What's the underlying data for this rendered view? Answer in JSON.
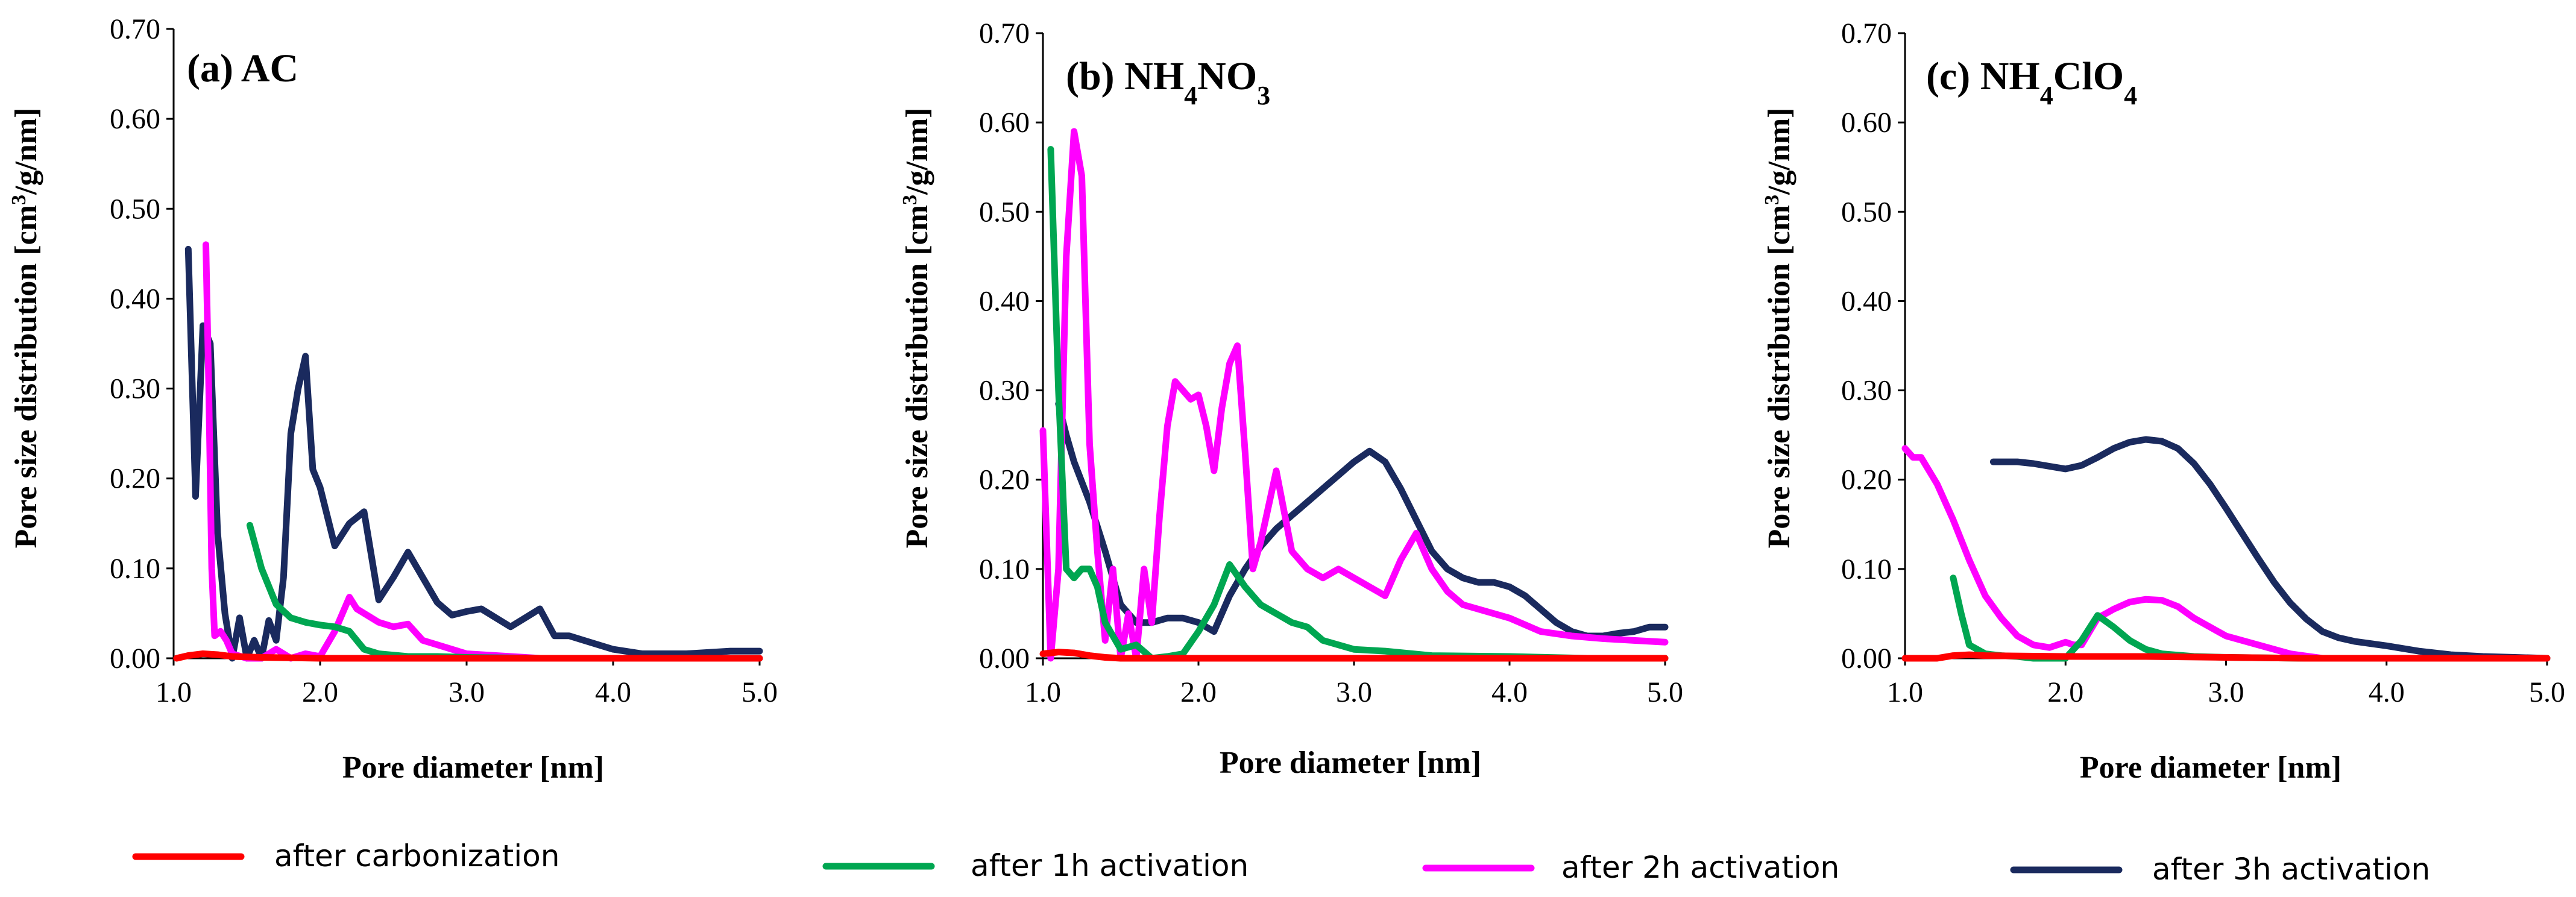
{
  "legend": [
    {
      "name": "after carbonization",
      "color": "#ff0000"
    },
    {
      "name": "after 1h activation",
      "color": "#00a651"
    },
    {
      "name": "after 2h activation",
      "color": "#ff00ff"
    },
    {
      "name": "after 3h activation",
      "color": "#1a2a5e"
    }
  ],
  "chart_data": [
    {
      "type": "line",
      "panel_label": "(a) AC",
      "xlabel": "Pore diameter [nm]",
      "ylabel": "Pore size distribution [cm³/g/nm]",
      "xlim": [
        1.0,
        5.0
      ],
      "ylim": [
        0.0,
        0.7
      ],
      "xticks": [
        "1.0",
        "2.0",
        "3.0",
        "4.0",
        "5.0"
      ],
      "yticks": [
        "0.00",
        "0.10",
        "0.20",
        "0.30",
        "0.40",
        "0.50",
        "0.60",
        "0.70"
      ],
      "series": [
        {
          "name": "after carbonization",
          "color": "#ff0000",
          "x": [
            1.02,
            1.1,
            1.2,
            1.3,
            1.4,
            1.6,
            2.0,
            2.5,
            3.0,
            4.0,
            5.0
          ],
          "y": [
            0.0,
            0.003,
            0.005,
            0.004,
            0.002,
            0.001,
            0.0,
            0.0,
            0.0,
            0.0,
            0.0
          ]
        },
        {
          "name": "after 1h activation",
          "color": "#00a651",
          "x": [
            1.52,
            1.6,
            1.7,
            1.8,
            1.9,
            2.0,
            2.1,
            2.2,
            2.3,
            2.4,
            2.6,
            2.8,
            3.0,
            3.5,
            4.0,
            4.5,
            5.0
          ],
          "y": [
            0.148,
            0.1,
            0.06,
            0.045,
            0.04,
            0.037,
            0.035,
            0.03,
            0.01,
            0.005,
            0.002,
            0.002,
            0.001,
            0.0,
            0.0,
            0.0,
            0.0
          ]
        },
        {
          "name": "after 2h activation",
          "color": "#ff00ff",
          "x": [
            1.22,
            1.24,
            1.26,
            1.28,
            1.32,
            1.36,
            1.4,
            1.5,
            1.6,
            1.7,
            1.8,
            1.9,
            2.0,
            2.1,
            2.2,
            2.25,
            2.3,
            2.4,
            2.5,
            2.6,
            2.7,
            2.8,
            3.0,
            3.5,
            4.0,
            5.0
          ],
          "y": [
            0.46,
            0.3,
            0.1,
            0.025,
            0.03,
            0.02,
            0.005,
            0.0,
            0.0,
            0.01,
            0.0,
            0.005,
            0.002,
            0.03,
            0.068,
            0.055,
            0.05,
            0.04,
            0.035,
            0.038,
            0.02,
            0.015,
            0.005,
            0.0,
            0.0,
            0.0
          ]
        },
        {
          "name": "after 3h activation",
          "color": "#1a2a5e",
          "x": [
            1.1,
            1.15,
            1.2,
            1.25,
            1.3,
            1.35,
            1.4,
            1.45,
            1.5,
            1.55,
            1.6,
            1.65,
            1.7,
            1.75,
            1.8,
            1.85,
            1.9,
            1.95,
            2.0,
            2.1,
            2.2,
            2.3,
            2.4,
            2.5,
            2.6,
            2.7,
            2.8,
            2.9,
            3.0,
            3.1,
            3.2,
            3.3,
            3.4,
            3.5,
            3.6,
            3.7,
            3.8,
            4.0,
            4.2,
            4.5,
            4.8,
            5.0
          ],
          "y": [
            0.455,
            0.18,
            0.37,
            0.35,
            0.14,
            0.05,
            0.0,
            0.045,
            0.0,
            0.02,
            0.0,
            0.042,
            0.02,
            0.09,
            0.25,
            0.3,
            0.336,
            0.21,
            0.19,
            0.125,
            0.15,
            0.163,
            0.065,
            0.09,
            0.118,
            0.09,
            0.062,
            0.048,
            0.052,
            0.055,
            0.045,
            0.035,
            0.045,
            0.055,
            0.025,
            0.025,
            0.02,
            0.01,
            0.005,
            0.005,
            0.008,
            0.008
          ]
        }
      ]
    },
    {
      "type": "line",
      "panel_label": "(b) NH4NO3",
      "xlabel": "Pore diameter [nm]",
      "ylabel": "Pore size distribution [cm³/g/nm]",
      "xlim": [
        1.0,
        5.0
      ],
      "ylim": [
        0.0,
        0.7
      ],
      "xticks": [
        "1.0",
        "2.0",
        "3.0",
        "4.0",
        "5.0"
      ],
      "yticks": [
        "0.00",
        "0.10",
        "0.20",
        "0.30",
        "0.40",
        "0.50",
        "0.60",
        "0.70"
      ],
      "series": [
        {
          "name": "after carbonization",
          "color": "#ff0000",
          "x": [
            1.0,
            1.1,
            1.2,
            1.3,
            1.4,
            1.5,
            2.0,
            3.0,
            4.0,
            5.0
          ],
          "y": [
            0.005,
            0.007,
            0.006,
            0.003,
            0.001,
            0.0,
            0.0,
            0.0,
            0.0,
            0.0
          ]
        },
        {
          "name": "after 1h activation",
          "color": "#00a651",
          "x": [
            1.05,
            1.1,
            1.15,
            1.2,
            1.25,
            1.3,
            1.35,
            1.4,
            1.5,
            1.6,
            1.7,
            1.8,
            1.9,
            2.0,
            2.1,
            2.2,
            2.3,
            2.4,
            2.5,
            2.6,
            2.7,
            2.8,
            3.0,
            3.2,
            3.5,
            4.0,
            4.5,
            5.0
          ],
          "y": [
            0.57,
            0.3,
            0.1,
            0.09,
            0.1,
            0.1,
            0.08,
            0.04,
            0.01,
            0.015,
            0.0,
            0.002,
            0.005,
            0.03,
            0.06,
            0.105,
            0.08,
            0.06,
            0.05,
            0.04,
            0.035,
            0.02,
            0.01,
            0.008,
            0.003,
            0.002,
            0.0,
            0.0
          ]
        },
        {
          "name": "after 2h activation",
          "color": "#ff00ff",
          "x": [
            1.0,
            1.05,
            1.1,
            1.15,
            1.2,
            1.25,
            1.3,
            1.35,
            1.4,
            1.45,
            1.5,
            1.55,
            1.6,
            1.65,
            1.7,
            1.75,
            1.8,
            1.85,
            1.9,
            1.95,
            2.0,
            2.05,
            2.1,
            2.15,
            2.2,
            2.25,
            2.3,
            2.35,
            2.4,
            2.45,
            2.5,
            2.6,
            2.7,
            2.8,
            2.9,
            3.0,
            3.1,
            3.2,
            3.3,
            3.4,
            3.5,
            3.6,
            3.7,
            3.8,
            4.0,
            4.2,
            4.4,
            4.6,
            4.8,
            5.0
          ],
          "y": [
            0.255,
            0.0,
            0.1,
            0.45,
            0.59,
            0.54,
            0.24,
            0.12,
            0.02,
            0.1,
            0.0,
            0.05,
            0.0,
            0.1,
            0.04,
            0.16,
            0.26,
            0.31,
            0.3,
            0.29,
            0.295,
            0.26,
            0.21,
            0.28,
            0.33,
            0.35,
            0.23,
            0.1,
            0.13,
            0.17,
            0.21,
            0.12,
            0.1,
            0.09,
            0.1,
            0.09,
            0.08,
            0.07,
            0.11,
            0.14,
            0.1,
            0.075,
            0.06,
            0.055,
            0.045,
            0.03,
            0.025,
            0.022,
            0.02,
            0.018
          ]
        },
        {
          "name": "after 3h activation",
          "color": "#1a2a5e",
          "x": [
            1.1,
            1.15,
            1.2,
            1.3,
            1.4,
            1.5,
            1.6,
            1.7,
            1.8,
            1.9,
            2.0,
            2.1,
            2.2,
            2.3,
            2.4,
            2.5,
            2.6,
            2.7,
            2.8,
            2.9,
            3.0,
            3.1,
            3.2,
            3.3,
            3.4,
            3.5,
            3.6,
            3.7,
            3.8,
            3.9,
            4.0,
            4.1,
            4.2,
            4.3,
            4.4,
            4.5,
            4.6,
            4.7,
            4.8,
            4.9,
            5.0
          ],
          "y": [
            0.285,
            0.25,
            0.22,
            0.175,
            0.12,
            0.06,
            0.04,
            0.04,
            0.045,
            0.045,
            0.04,
            0.03,
            0.07,
            0.1,
            0.125,
            0.145,
            0.16,
            0.175,
            0.19,
            0.205,
            0.22,
            0.232,
            0.22,
            0.19,
            0.155,
            0.12,
            0.1,
            0.09,
            0.085,
            0.085,
            0.08,
            0.07,
            0.055,
            0.04,
            0.03,
            0.025,
            0.025,
            0.028,
            0.03,
            0.035,
            0.035
          ]
        }
      ]
    },
    {
      "type": "line",
      "panel_label": "(c) NH4ClO4",
      "xlabel": "Pore diameter [nm]",
      "ylabel": "Pore size distribution [cm³/g/nm]",
      "xlim": [
        1.0,
        5.0
      ],
      "ylim": [
        0.0,
        0.7
      ],
      "xticks": [
        "1.0",
        "2.0",
        "3.0",
        "4.0",
        "5.0"
      ],
      "yticks": [
        "0.00",
        "0.10",
        "0.20",
        "0.30",
        "0.40",
        "0.50",
        "0.60",
        "0.70"
      ],
      "series": [
        {
          "name": "after carbonization",
          "color": "#ff0000",
          "x": [
            1.0,
            1.1,
            1.2,
            1.3,
            1.4,
            1.5,
            2.0,
            2.5,
            3.0,
            3.5,
            4.0,
            5.0
          ],
          "y": [
            0.0,
            0.0,
            0.0,
            0.003,
            0.004,
            0.003,
            0.002,
            0.002,
            0.001,
            0.0,
            0.0,
            0.0
          ]
        },
        {
          "name": "after 1h activation",
          "color": "#00a651",
          "x": [
            1.3,
            1.35,
            1.4,
            1.5,
            1.6,
            1.7,
            1.8,
            1.9,
            2.0,
            2.1,
            2.2,
            2.3,
            2.4,
            2.5,
            2.6,
            2.8,
            3.0,
            3.5,
            4.0,
            5.0
          ],
          "y": [
            0.09,
            0.05,
            0.015,
            0.005,
            0.003,
            0.002,
            0.0,
            0.0,
            0.0,
            0.02,
            0.048,
            0.035,
            0.02,
            0.01,
            0.005,
            0.002,
            0.001,
            0.0,
            0.0,
            0.0
          ]
        },
        {
          "name": "after 2h activation",
          "color": "#ff00ff",
          "x": [
            1.0,
            1.05,
            1.1,
            1.2,
            1.3,
            1.4,
            1.5,
            1.6,
            1.7,
            1.8,
            1.9,
            2.0,
            2.05,
            2.1,
            2.2,
            2.3,
            2.4,
            2.5,
            2.6,
            2.7,
            2.8,
            2.9,
            3.0,
            3.2,
            3.4,
            3.6,
            4.0,
            4.5,
            5.0
          ],
          "y": [
            0.235,
            0.225,
            0.225,
            0.195,
            0.155,
            0.11,
            0.07,
            0.045,
            0.025,
            0.015,
            0.012,
            0.018,
            0.015,
            0.015,
            0.045,
            0.055,
            0.063,
            0.066,
            0.065,
            0.058,
            0.045,
            0.035,
            0.025,
            0.015,
            0.005,
            0.0,
            0.0,
            0.0,
            0.0
          ]
        },
        {
          "name": "after 3h activation",
          "color": "#1a2a5e",
          "x": [
            1.55,
            1.6,
            1.7,
            1.8,
            1.9,
            2.0,
            2.1,
            2.2,
            2.3,
            2.4,
            2.5,
            2.6,
            2.7,
            2.8,
            2.9,
            3.0,
            3.1,
            3.2,
            3.3,
            3.4,
            3.5,
            3.6,
            3.7,
            3.8,
            4.0,
            4.2,
            4.4,
            4.6,
            4.8,
            5.0
          ],
          "y": [
            0.22,
            0.22,
            0.22,
            0.218,
            0.215,
            0.212,
            0.216,
            0.225,
            0.235,
            0.242,
            0.245,
            0.243,
            0.235,
            0.218,
            0.195,
            0.168,
            0.14,
            0.112,
            0.085,
            0.062,
            0.044,
            0.03,
            0.023,
            0.019,
            0.014,
            0.008,
            0.004,
            0.002,
            0.001,
            0.0
          ]
        }
      ]
    }
  ]
}
